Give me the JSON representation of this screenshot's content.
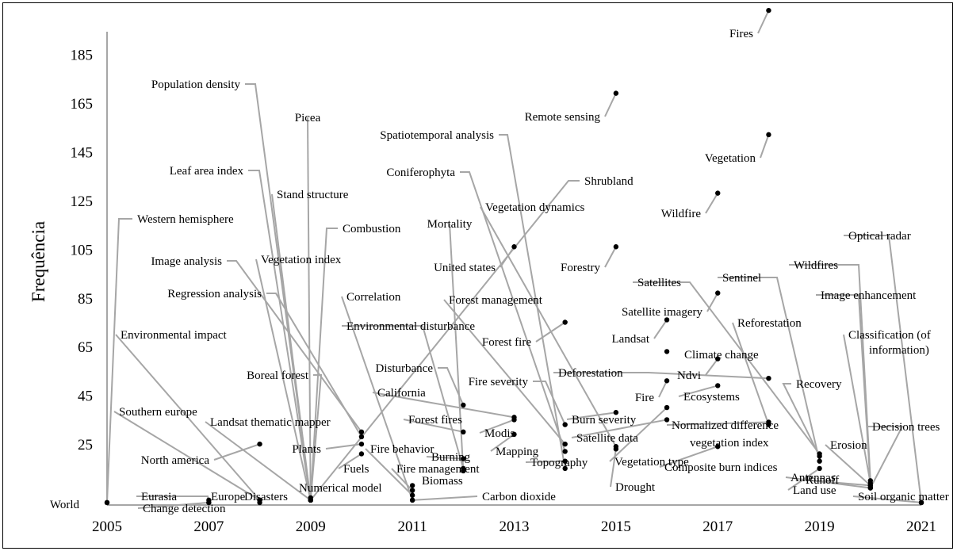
{
  "chart_data": {
    "type": "scatter",
    "title": "",
    "xlabel": "",
    "ylabel": "Frequência",
    "xlim": [
      2005,
      2021
    ],
    "ylim": [
      0,
      205
    ],
    "xticks": [
      "2005",
      "2007",
      "2009",
      "2011",
      "2013",
      "2015",
      "2017",
      "2019",
      "2021"
    ],
    "yticks": [
      "25",
      "45",
      "65",
      "85",
      "105",
      "125",
      "145",
      "165",
      "185"
    ],
    "grid": false,
    "legend": "none",
    "colors": {
      "point": "#000000",
      "leader": "#a6a6a6",
      "axis": "#a6a6a6",
      "text": "#000000"
    },
    "points": [
      {
        "term": "World",
        "x": 2005,
        "y": 1
      },
      {
        "term": "Western hemisphere",
        "x": 2005,
        "y": 1
      },
      {
        "term": "Eurasia",
        "x": 2007,
        "y": 1
      },
      {
        "term": "Europe",
        "x": 2007,
        "y": 2
      },
      {
        "term": "Change detection",
        "x": 2007,
        "y": 1
      },
      {
        "term": "Environmental impact",
        "x": 2008,
        "y": 2
      },
      {
        "term": "Southern europe",
        "x": 2008,
        "y": 2
      },
      {
        "term": "North america",
        "x": 2008,
        "y": 25
      },
      {
        "term": "Disasters",
        "x": 2008,
        "y": 1
      },
      {
        "term": "Population density",
        "x": 2009,
        "y": 2
      },
      {
        "term": "Picea",
        "x": 2009,
        "y": 2
      },
      {
        "term": "Leaf area index",
        "x": 2009,
        "y": 2
      },
      {
        "term": "Stand structure",
        "x": 2009,
        "y": 2
      },
      {
        "term": "Combustion",
        "x": 2009,
        "y": 2
      },
      {
        "term": "Vegetation index",
        "x": 2009,
        "y": 2
      },
      {
        "term": "Boreal forest",
        "x": 2009,
        "y": 2
      },
      {
        "term": "Landsat thematic mapper",
        "x": 2009,
        "y": 2
      },
      {
        "term": "Numerical model",
        "x": 2009,
        "y": 3
      },
      {
        "term": "Shrubland",
        "x": 2009,
        "y": 2
      },
      {
        "term": "Image analysis",
        "x": 2010,
        "y": 30
      },
      {
        "term": "Regression analysis",
        "x": 2010,
        "y": 28
      },
      {
        "term": "Plants",
        "x": 2010,
        "y": 25
      },
      {
        "term": "Fuels",
        "x": 2010,
        "y": 21
      },
      {
        "term": "Correlation",
        "x": 2011,
        "y": 2
      },
      {
        "term": "Fire behavior",
        "x": 2011,
        "y": 4
      },
      {
        "term": "Fire management",
        "x": 2011,
        "y": 6
      },
      {
        "term": "Biomass",
        "x": 2011,
        "y": 8
      },
      {
        "term": "Carbon dioxide",
        "x": 2011,
        "y": 2
      },
      {
        "term": "Mortality",
        "x": 2012,
        "y": 14
      },
      {
        "term": "Environmental disturbance",
        "x": 2012,
        "y": 15
      },
      {
        "term": "Disturbance",
        "x": 2012,
        "y": 41
      },
      {
        "term": "Forest fires",
        "x": 2012,
        "y": 30
      },
      {
        "term": "Burning",
        "x": 2012,
        "y": 19
      },
      {
        "term": "California",
        "x": 2013,
        "y": 36
      },
      {
        "term": "Modis",
        "x": 2013,
        "y": 35
      },
      {
        "term": "Mapping",
        "x": 2013,
        "y": 29
      },
      {
        "term": "United states",
        "x": 2013,
        "y": 106
      },
      {
        "term": "Fire severity",
        "x": 2014,
        "y": 33
      },
      {
        "term": "Spatiotemporal analysis",
        "x": 2014,
        "y": 15
      },
      {
        "term": "Coniferophyta",
        "x": 2014,
        "y": 22
      },
      {
        "term": "Forest management",
        "x": 2014,
        "y": 25
      },
      {
        "term": "Topography",
        "x": 2014,
        "y": 18
      },
      {
        "term": "Forest fire",
        "x": 2014,
        "y": 75
      },
      {
        "term": "Remote sensing",
        "x": 2015,
        "y": 169
      },
      {
        "term": "Vegetation dynamics",
        "x": 2015,
        "y": 24
      },
      {
        "term": "Forestry",
        "x": 2015,
        "y": 106
      },
      {
        "term": "Burn severity",
        "x": 2015,
        "y": 38
      },
      {
        "term": "Drought",
        "x": 2015,
        "y": 23
      },
      {
        "term": "Landsat",
        "x": 2016,
        "y": 76
      },
      {
        "term": "Climate change",
        "x": 2016,
        "y": 63
      },
      {
        "term": "Fire",
        "x": 2016,
        "y": 51
      },
      {
        "term": "Satellite data",
        "x": 2016,
        "y": 35
      },
      {
        "term": "Vegetation type",
        "x": 2016,
        "y": 40
      },
      {
        "term": "Wildfire",
        "x": 2017,
        "y": 128
      },
      {
        "term": "Satellite imagery",
        "x": 2017,
        "y": 87
      },
      {
        "term": "Ndvi",
        "x": 2017,
        "y": 60
      },
      {
        "term": "Ecosystems",
        "x": 2017,
        "y": 49
      },
      {
        "term": "Composite burn indices",
        "x": 2017,
        "y": 24
      },
      {
        "term": "Fires",
        "x": 2018,
        "y": 203
      },
      {
        "term": "Vegetation",
        "x": 2018,
        "y": 152
      },
      {
        "term": "Deforestation",
        "x": 2018,
        "y": 52
      },
      {
        "term": "Normalized difference vegetation index",
        "x": 2018,
        "y": 34
      },
      {
        "term": "Reforestation",
        "x": 2018,
        "y": 33
      },
      {
        "term": "Satellites",
        "x": 2019,
        "y": 21
      },
      {
        "term": "Sentinel",
        "x": 2019,
        "y": 18
      },
      {
        "term": "Recovery",
        "x": 2019,
        "y": 20
      },
      {
        "term": "Land use",
        "x": 2019,
        "y": 15
      },
      {
        "term": "Wildfires",
        "x": 2020,
        "y": 10
      },
      {
        "term": "Image enhancement",
        "x": 2020,
        "y": 8
      },
      {
        "term": "Classification (of information)",
        "x": 2020,
        "y": 9
      },
      {
        "term": "Decision trees",
        "x": 2020,
        "y": 7
      },
      {
        "term": "Erosion",
        "x": 2020,
        "y": 8
      },
      {
        "term": "Runoff",
        "x": 2020,
        "y": 8
      },
      {
        "term": "Antennas",
        "x": 2020,
        "y": 7
      },
      {
        "term": "Optical radar",
        "x": 2021,
        "y": 1
      },
      {
        "term": "Soil organic matter",
        "x": 2021,
        "y": 1
      }
    ]
  }
}
